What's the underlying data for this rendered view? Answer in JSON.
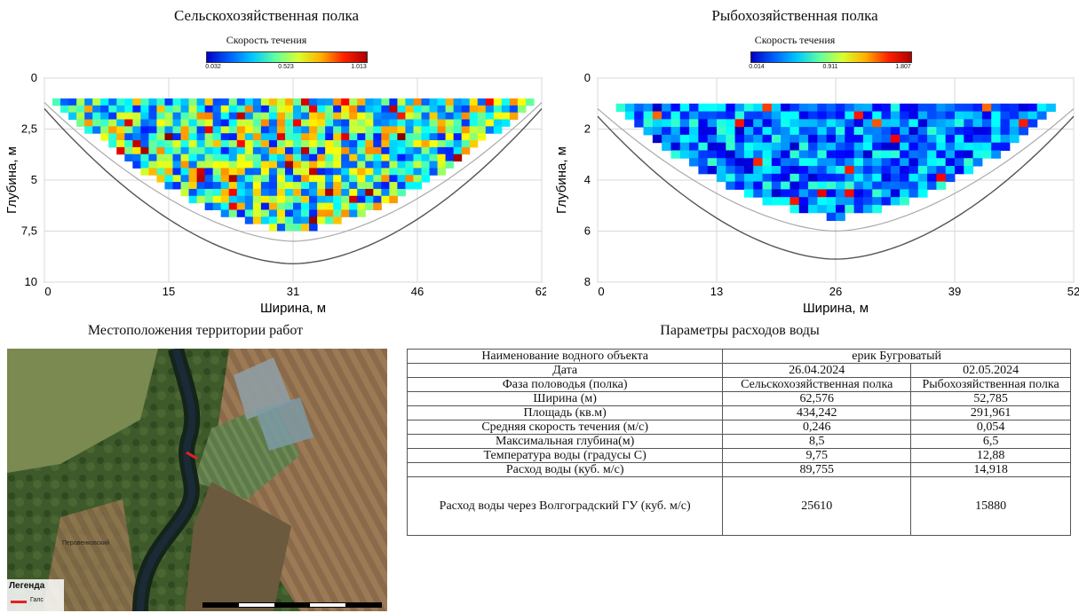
{
  "chart_data": [
    {
      "type": "heatmap",
      "title": "Сельскохозяйственная полка",
      "colorbar_title": "Скорость течения",
      "colorbar_ticks": [
        "0.032",
        "0.523",
        "1.013"
      ],
      "colorbar_range": [
        0.032,
        1.013
      ],
      "xlabel": "Ширина, м",
      "ylabel": "Глубина, м",
      "xticks": [
        "0",
        "15",
        "31",
        "46",
        "62"
      ],
      "yticks": [
        "0",
        "2,5",
        "5",
        "7,5",
        "10"
      ],
      "xlim": [
        0,
        62.576
      ],
      "ylim": [
        10,
        0
      ],
      "max_depth": 8.5,
      "grid": true,
      "seed": 7,
      "vel_mean": 0.45,
      "vel_spread": 0.3,
      "cell_rows": 22,
      "cell_cols": 62
    },
    {
      "type": "heatmap",
      "title": "Рыбохозяйственная полка",
      "colorbar_title": "Скорость течения",
      "colorbar_ticks": [
        "0.014",
        "0.911",
        "1.807"
      ],
      "colorbar_range": [
        0.014,
        1.807
      ],
      "xlabel": "Ширина, м",
      "ylabel": "Глубина, м",
      "xticks": [
        "0",
        "13",
        "26",
        "39",
        "52"
      ],
      "yticks": [
        "0",
        "2",
        "4",
        "6",
        "8"
      ],
      "xlim": [
        0,
        52.785
      ],
      "ylim": [
        8,
        0
      ],
      "max_depth": 6.5,
      "grid": true,
      "seed": 19,
      "vel_mean": 0.28,
      "vel_spread": 0.2,
      "cell_rows": 18,
      "cell_cols": 52
    }
  ],
  "map": {
    "title": "Местоположения территории работ",
    "legend_title": "Легенда",
    "legend_item": "Галс",
    "village_label": "Перовенковский"
  },
  "table": {
    "title": "Параметры расходов воды",
    "rows": [
      {
        "label": "Наименование водного объекта",
        "span": "ерик Бугроватый"
      },
      {
        "label": "Дата",
        "v1": "26.04.2024",
        "v2": "02.05.2024"
      },
      {
        "label": "Фаза половодья (полка)",
        "v1": "Сельскохозяйственная полка",
        "v2": "Рыбохозяйственная полка"
      },
      {
        "label": "Ширина (м)",
        "v1": "62,576",
        "v2": "52,785"
      },
      {
        "label": "Площадь (кв.м)",
        "v1": "434,242",
        "v2": "291,961"
      },
      {
        "label": "Средняя скорость течения (м/с)",
        "v1": "0,246",
        "v2": "0,054"
      },
      {
        "label": "Максимальная глубина(м)",
        "v1": "8,5",
        "v2": "6,5"
      },
      {
        "label": "Температура воды (градусы С)",
        "v1": "9,75",
        "v2": "12,88"
      },
      {
        "label": "Расход воды (куб. м/с)",
        "v1": "89,755",
        "v2": "14,918"
      },
      {
        "label": "Расход воды через Волгоградский ГУ (куб. м/с)",
        "v1": "25610",
        "v2": "15880"
      }
    ]
  }
}
